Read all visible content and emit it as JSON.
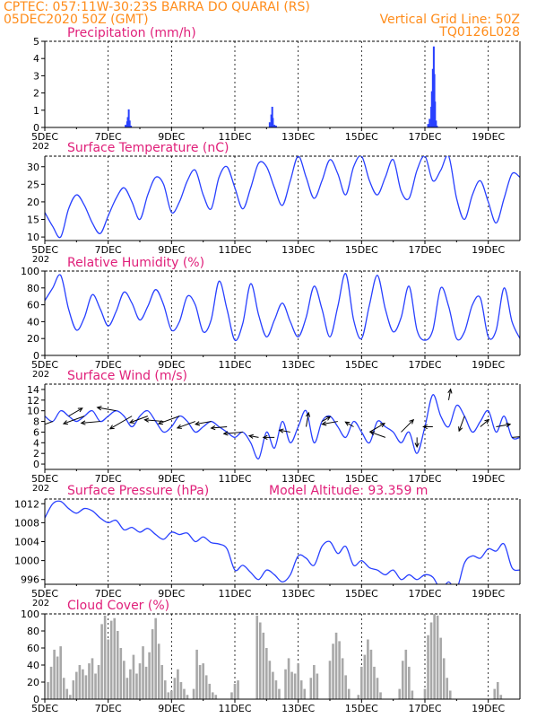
{
  "header": {
    "line1_left": "CPTEC:   057:11W-30:23S   BARRA DO QUARAI (RS)",
    "line2_left": "05DEC2020 50Z (GMT)",
    "line2_right": "Vertical Grid Line: 50Z",
    "line3_right": "TQ0126L028",
    "color": "#ff8c1a"
  },
  "colors": {
    "title": "#e0207a",
    "series": "#2840ff",
    "frame": "#000000",
    "grid": "#000000",
    "cloud_bar": "#a8a8a8"
  },
  "x_axis": {
    "ticks": [
      "5DEC",
      "7DEC",
      "9DEC",
      "11DEC",
      "13DEC",
      "15DEC",
      "17DEC",
      "19DEC"
    ],
    "tick_day": [
      0,
      2,
      4,
      6,
      8,
      10,
      12,
      14
    ],
    "range_days": [
      0,
      15
    ],
    "cut_label": "202"
  },
  "chart_data": [
    {
      "type": "bar",
      "title": "Precipitation (mm/h)",
      "ylim": [
        0,
        5
      ],
      "yticks": [
        0,
        1,
        2,
        3,
        4,
        5
      ],
      "x": [
        2.55,
        2.6,
        2.62,
        2.65,
        2.68,
        2.72,
        7.1,
        7.15,
        7.18,
        7.2,
        7.25,
        7.3,
        12.1,
        12.15,
        12.2,
        12.22,
        12.25,
        12.28,
        12.3,
        12.32,
        12.35,
        12.38
      ],
      "values": [
        0.15,
        0.35,
        0.6,
        1.05,
        0.4,
        0.1,
        0.3,
        0.75,
        1.2,
        0.55,
        0.15,
        0.1,
        0.2,
        0.5,
        1.2,
        2.1,
        3.4,
        4.7,
        3.1,
        1.5,
        0.4,
        0.1
      ]
    },
    {
      "type": "line",
      "title": "Surface Temperature (nC)",
      "ylim": [
        9,
        33
      ],
      "yticks": [
        10,
        15,
        20,
        25,
        30
      ],
      "x": [
        0,
        0.25,
        0.5,
        0.75,
        1,
        1.25,
        1.5,
        1.75,
        2,
        2.25,
        2.5,
        2.75,
        3,
        3.25,
        3.5,
        3.75,
        4,
        4.25,
        4.5,
        4.75,
        5,
        5.25,
        5.5,
        5.75,
        6,
        6.25,
        6.5,
        6.75,
        7,
        7.25,
        7.5,
        7.75,
        8,
        8.25,
        8.5,
        8.75,
        9,
        9.25,
        9.5,
        9.75,
        10,
        10.25,
        10.5,
        10.75,
        11,
        11.25,
        11.5,
        11.75,
        12,
        12.25,
        12.5,
        12.75,
        13,
        13.25,
        13.5,
        13.75,
        14,
        14.25,
        14.5,
        14.75,
        15
      ],
      "values": [
        17,
        13,
        10,
        18,
        22,
        19,
        14,
        11,
        16,
        21,
        24,
        20,
        15,
        22,
        27,
        25,
        17,
        20,
        26,
        29,
        22,
        18,
        27,
        30,
        24,
        18,
        24,
        31,
        30,
        24,
        19,
        26,
        33,
        27,
        21,
        26,
        32,
        28,
        22,
        30,
        33,
        26,
        22,
        27,
        32,
        23,
        21,
        29,
        33,
        26,
        29,
        33,
        21,
        15,
        22,
        26,
        20,
        14,
        21,
        28,
        27
      ]
    },
    {
      "type": "line",
      "title": "Relative Humidity (%)",
      "ylim": [
        0,
        100
      ],
      "yticks": [
        0,
        20,
        40,
        60,
        80,
        100
      ],
      "x": [
        0,
        0.25,
        0.5,
        0.75,
        1,
        1.25,
        1.5,
        1.75,
        2,
        2.25,
        2.5,
        2.75,
        3,
        3.25,
        3.5,
        3.75,
        4,
        4.25,
        4.5,
        4.75,
        5,
        5.25,
        5.5,
        5.75,
        6,
        6.25,
        6.5,
        6.75,
        7,
        7.25,
        7.5,
        7.75,
        8,
        8.25,
        8.5,
        8.75,
        9,
        9.25,
        9.5,
        9.75,
        10,
        10.25,
        10.5,
        10.75,
        11,
        11.25,
        11.5,
        11.75,
        12,
        12.25,
        12.5,
        12.75,
        13,
        13.25,
        13.5,
        13.75,
        14,
        14.25,
        14.5,
        14.75,
        15
      ],
      "values": [
        65,
        80,
        95,
        55,
        30,
        45,
        72,
        55,
        35,
        52,
        75,
        62,
        42,
        58,
        78,
        60,
        30,
        40,
        70,
        60,
        28,
        42,
        88,
        55,
        18,
        38,
        85,
        48,
        22,
        42,
        62,
        40,
        22,
        45,
        82,
        55,
        22,
        58,
        97,
        42,
        20,
        60,
        95,
        55,
        28,
        45,
        82,
        30,
        18,
        30,
        80,
        58,
        20,
        28,
        60,
        68,
        22,
        30,
        80,
        40,
        20
      ]
    },
    {
      "type": "line",
      "title": "Surface Wind (m/s)",
      "ylim": [
        -1,
        15
      ],
      "yticks": [
        0,
        2,
        4,
        6,
        8,
        10,
        12,
        14
      ],
      "x": [
        0,
        0.25,
        0.5,
        0.75,
        1,
        1.25,
        1.5,
        1.75,
        2,
        2.25,
        2.5,
        2.75,
        3,
        3.25,
        3.5,
        3.75,
        4,
        4.25,
        4.5,
        4.75,
        5,
        5.25,
        5.5,
        5.75,
        6,
        6.25,
        6.5,
        6.75,
        7,
        7.25,
        7.5,
        7.75,
        8,
        8.25,
        8.5,
        8.75,
        9,
        9.25,
        9.5,
        9.75,
        10,
        10.25,
        10.5,
        10.75,
        11,
        11.25,
        11.5,
        11.75,
        12,
        12.25,
        12.5,
        12.75,
        13,
        13.25,
        13.5,
        13.75,
        14,
        14.25,
        14.5,
        14.75,
        15
      ],
      "values": [
        9,
        8,
        10,
        9,
        8,
        9,
        10,
        8,
        9,
        10,
        9,
        7,
        9,
        10,
        8,
        6,
        7,
        9,
        8,
        6,
        7,
        8,
        7,
        6,
        5,
        6,
        4,
        1,
        6,
        3,
        8,
        4,
        7,
        10,
        4,
        8,
        9,
        7,
        5,
        8,
        6,
        4,
        8,
        7,
        6,
        4,
        6,
        2,
        7,
        13,
        9,
        7,
        11,
        9,
        6,
        8,
        10,
        6,
        9,
        5,
        5
      ]
    },
    {
      "type": "line",
      "title": "Surface Pressure (hPa)",
      "annotation": "Model Altitude: 93.359  m",
      "ylim": [
        995,
        1013
      ],
      "yticks": [
        996,
        1000,
        1004,
        1008,
        1012
      ],
      "x": [
        0,
        0.25,
        0.5,
        0.75,
        1,
        1.25,
        1.5,
        1.75,
        2,
        2.25,
        2.5,
        2.75,
        3,
        3.25,
        3.5,
        3.75,
        4,
        4.25,
        4.5,
        4.75,
        5,
        5.25,
        5.5,
        5.75,
        6,
        6.25,
        6.5,
        6.75,
        7,
        7.25,
        7.5,
        7.75,
        8,
        8.25,
        8.5,
        8.75,
        9,
        9.25,
        9.5,
        9.75,
        10,
        10.25,
        10.5,
        10.75,
        11,
        11.25,
        11.5,
        11.75,
        12,
        12.25,
        12.5,
        12.75,
        13,
        13.25,
        13.5,
        13.75,
        14,
        14.25,
        14.5,
        14.75,
        15
      ],
      "values": [
        1009,
        1012,
        1012.5,
        1011,
        1010,
        1011,
        1010.5,
        1009,
        1008,
        1008.5,
        1006.5,
        1007,
        1006,
        1006.8,
        1005.5,
        1004.5,
        1006,
        1005.5,
        1005.8,
        1004,
        1005,
        1003.8,
        1003.5,
        1002.5,
        998,
        999,
        997.5,
        996,
        998,
        997,
        995.5,
        997,
        1001,
        1000.5,
        999,
        1003,
        1004,
        1001.5,
        1003,
        999,
        1000,
        998.5,
        998,
        997,
        998,
        996,
        997,
        996,
        997,
        996.5,
        994,
        995.5,
        994,
        999.5,
        1001,
        1000.5,
        1002.5,
        1002,
        1003.5,
        998.5,
        998
      ]
    },
    {
      "type": "bar",
      "title": "Cloud Cover (%)",
      "ylim": [
        0,
        100
      ],
      "yticks": [
        0,
        20,
        40,
        60,
        80,
        100
      ],
      "x": [
        0.1,
        0.2,
        0.3,
        0.4,
        0.5,
        0.6,
        0.7,
        0.8,
        0.9,
        1.0,
        1.1,
        1.2,
        1.3,
        1.4,
        1.5,
        1.6,
        1.7,
        1.8,
        1.9,
        2.0,
        2.1,
        2.2,
        2.3,
        2.4,
        2.5,
        2.6,
        2.7,
        2.8,
        2.9,
        3.0,
        3.1,
        3.2,
        3.3,
        3.4,
        3.5,
        3.6,
        3.7,
        3.8,
        3.9,
        4.0,
        4.1,
        4.2,
        4.3,
        4.4,
        4.5,
        4.6,
        4.7,
        4.8,
        4.9,
        5.0,
        5.1,
        5.2,
        5.3,
        5.4,
        5.5,
        5.6,
        5.7,
        5.8,
        5.9,
        6.0,
        6.1,
        6.2,
        6.3,
        6.4,
        6.5,
        6.6,
        6.7,
        6.8,
        6.9,
        7.0,
        7.1,
        7.2,
        7.3,
        7.4,
        7.5,
        7.6,
        7.7,
        7.8,
        7.9,
        8.0,
        8.1,
        8.2,
        8.3,
        8.4,
        8.5,
        8.6,
        8.7,
        8.8,
        8.9,
        9.0,
        9.1,
        9.2,
        9.3,
        9.4,
        9.5,
        9.6,
        9.7,
        9.8,
        9.9,
        10.0,
        10.1,
        10.2,
        10.3,
        10.4,
        10.5,
        10.6,
        10.7,
        10.8,
        10.9,
        11.0,
        11.1,
        11.2,
        11.3,
        11.4,
        11.5,
        11.6,
        11.7,
        11.8,
        11.9,
        12.0,
        12.1,
        12.2,
        12.3,
        12.4,
        12.5,
        12.6,
        12.7,
        12.8,
        12.9,
        13.0,
        13.1,
        13.2,
        13.3,
        13.4,
        13.5,
        13.6,
        13.7,
        13.8,
        13.9,
        14.0,
        14.1,
        14.2,
        14.3,
        14.4,
        14.5,
        14.6,
        14.7,
        14.8,
        14.9
      ],
      "values": [
        20,
        38,
        58,
        50,
        62,
        25,
        12,
        5,
        22,
        32,
        40,
        35,
        28,
        42,
        48,
        30,
        40,
        88,
        98,
        70,
        92,
        95,
        80,
        60,
        45,
        25,
        35,
        52,
        30,
        42,
        62,
        38,
        55,
        82,
        95,
        65,
        40,
        22,
        8,
        10,
        25,
        35,
        20,
        12,
        5,
        0,
        12,
        58,
        40,
        42,
        28,
        18,
        8,
        5,
        0,
        0,
        0,
        0,
        8,
        18,
        22,
        0,
        0,
        0,
        0,
        0,
        98,
        90,
        78,
        60,
        45,
        32,
        22,
        12,
        0,
        35,
        48,
        32,
        30,
        42,
        22,
        12,
        0,
        25,
        40,
        30,
        0,
        0,
        0,
        45,
        65,
        78,
        68,
        48,
        28,
        12,
        0,
        0,
        5,
        38,
        52,
        70,
        58,
        38,
        25,
        8,
        0,
        0,
        0,
        0,
        0,
        12,
        45,
        58,
        38,
        10,
        0,
        0,
        0,
        12,
        75,
        90,
        100,
        98,
        72,
        48,
        25,
        10,
        0,
        0,
        0,
        0,
        0,
        0,
        0,
        0,
        0,
        0,
        0,
        0,
        0,
        12,
        20,
        5,
        0,
        0,
        0,
        0,
        0
      ]
    }
  ],
  "wind_vectors": {
    "x": [
      0.25,
      0.75,
      1.25,
      1.75,
      2.25,
      2.75,
      3.25,
      3.75,
      4.25,
      4.75,
      5.25,
      5.75,
      6.25,
      6.75,
      7.25,
      7.75,
      8.25,
      8.75,
      9.25,
      9.75,
      10.25,
      10.75,
      11.25,
      11.75,
      12.25,
      12.75,
      13.25,
      13.75,
      14.25,
      14.75
    ],
    "y": [
      8,
      9,
      9,
      8,
      10,
      9,
      9,
      8,
      9,
      8,
      8,
      7,
      6,
      5,
      5,
      6,
      7,
      8,
      8,
      7,
      6,
      5,
      6,
      5,
      7,
      12,
      9,
      7,
      7,
      5
    ],
    "angle_deg": [
      200,
      30,
      200,
      185,
      170,
      210,
      200,
      175,
      200,
      200,
      190,
      185,
      185,
      170,
      180,
      170,
      80,
      30,
      190,
      150,
      30,
      160,
      45,
      270,
      180,
      80,
      250,
      40,
      10,
      5
    ],
    "length_days": [
      0.6,
      0.5,
      0.7,
      0.6,
      0.6,
      0.8,
      0.6,
      0.6,
      0.7,
      0.6,
      0.5,
      0.5,
      0.6,
      0.3,
      0.35,
      0.35,
      0.45,
      0.3,
      0.5,
      0.3,
      0.55,
      0.5,
      0.55,
      0.3,
      0.3,
      0.35,
      0.5,
      0.35,
      0.45,
      0.6
    ]
  }
}
